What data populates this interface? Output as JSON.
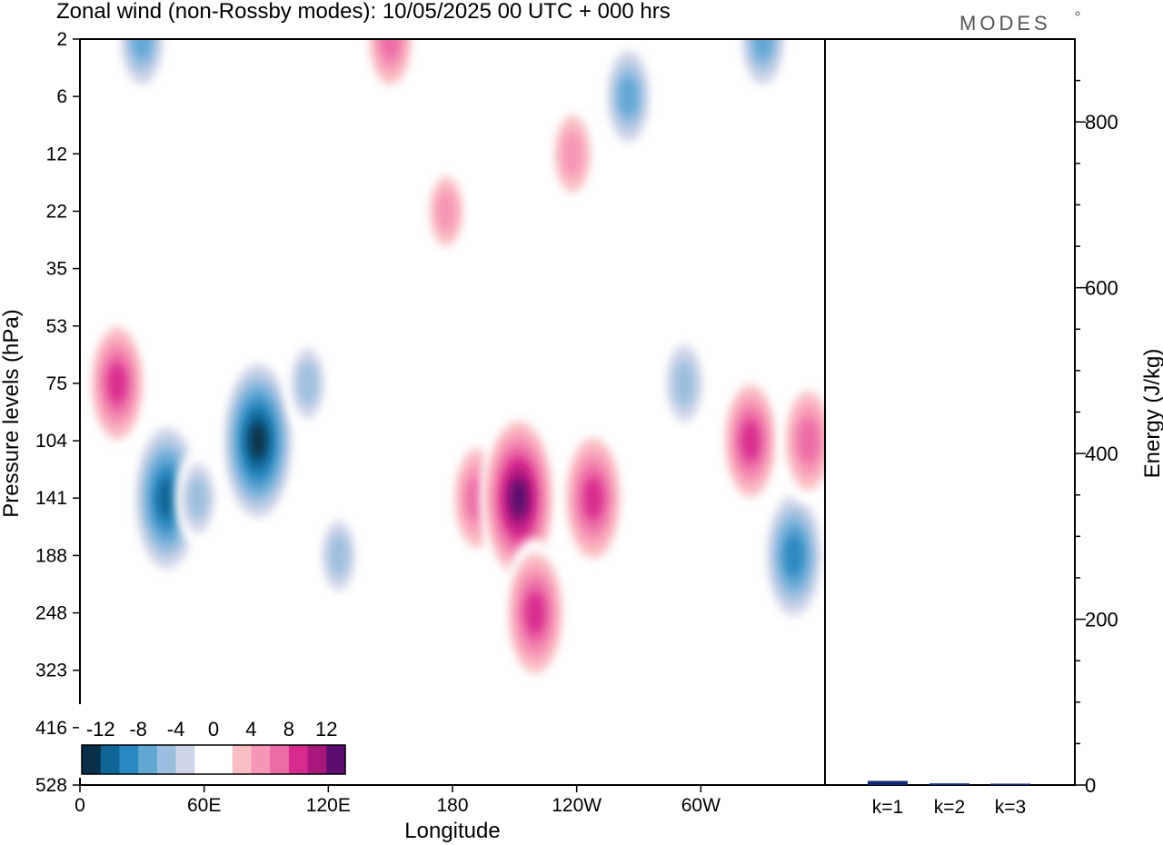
{
  "header": {
    "title": "Zonal wind (non-Rossby modes):  10/05/2025  00 UTC  + 000 hrs",
    "brand": "MODES"
  },
  "chart_data": [
    {
      "type": "heatmap",
      "title": "Zonal wind (non-Rossby modes):  10/05/2025  00 UTC  + 000 hrs",
      "xlabel": "Longitude",
      "ylabel": "Pressure levels (hPa)",
      "x_ticks": [
        "0",
        "60E",
        "120E",
        "180",
        "120W",
        "60W"
      ],
      "y_ticks": [
        "2",
        "6",
        "12",
        "22",
        "35",
        "53",
        "75",
        "104",
        "141",
        "188",
        "248",
        "323",
        "416",
        "528"
      ],
      "colorbar": {
        "tick_labels": [
          "-12",
          "-8",
          "-4",
          "0",
          "4",
          "8",
          "12"
        ],
        "colors": [
          "#08304a",
          "#0f6696",
          "#2a88c0",
          "#62a6d2",
          "#9bbfe0",
          "#d0d6ea",
          "#ffffff",
          "#ffffff",
          "#f9c0c3",
          "#f796b6",
          "#ec6aa6",
          "#d62a90",
          "#a8187a",
          "#5a0f6e"
        ]
      },
      "features": [
        {
          "lon": 18,
          "level": 75,
          "value": 9
        },
        {
          "lon": 30,
          "level": 2,
          "value": -7
        },
        {
          "lon": 42,
          "level": 141,
          "value": -12
        },
        {
          "lon": 57,
          "level": 141,
          "value": -5
        },
        {
          "lon": 86,
          "level": 104,
          "value": -13
        },
        {
          "lon": 110,
          "level": 75,
          "value": -5
        },
        {
          "lon": 150,
          "level": 2,
          "value": 7
        },
        {
          "lon": 125,
          "level": 188,
          "value": -5
        },
        {
          "lon": 177,
          "level": 22,
          "value": 5
        },
        {
          "lon": 192,
          "level": 141,
          "value": 8
        },
        {
          "lon": 212,
          "level": 141,
          "value": 13
        },
        {
          "lon": 220,
          "level": 248,
          "value": 10
        },
        {
          "lon": 248,
          "level": 141,
          "value": 10
        },
        {
          "lon": 238,
          "level": 12,
          "value": 6
        },
        {
          "lon": 265,
          "level": 6,
          "value": -7
        },
        {
          "lon": 292,
          "level": 75,
          "value": -6
        },
        {
          "lon": 330,
          "level": 2,
          "value": -7
        },
        {
          "lon": 324,
          "level": 104,
          "value": 9
        },
        {
          "lon": 345,
          "level": 188,
          "value": -10
        },
        {
          "lon": 352,
          "level": 104,
          "value": 8
        }
      ]
    },
    {
      "type": "bar",
      "ylabel": "Energy (J/kg)",
      "categories": [
        "k=1",
        "k=2",
        "k=3"
      ],
      "values": [
        5,
        2,
        1
      ],
      "ylim": [
        0,
        900
      ],
      "y_ticks": [
        "0",
        "200",
        "400",
        "600",
        "800"
      ],
      "bar_color": "#102a7a"
    }
  ]
}
